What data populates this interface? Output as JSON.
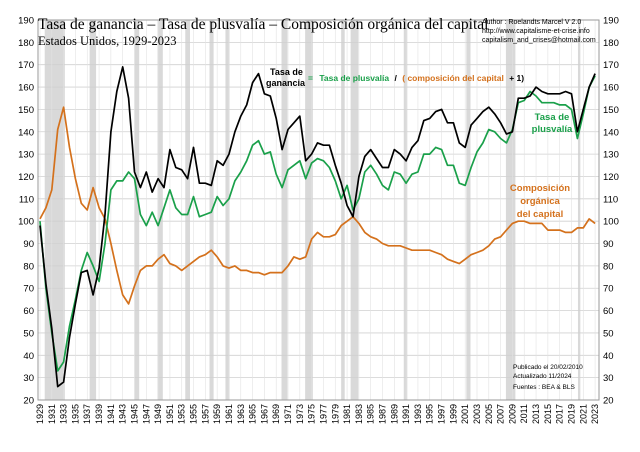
{
  "chart_data": {
    "type": "line",
    "title": "Tasa de ganancia – Tasa de plusvalía – Composición orgánica del capital",
    "subtitle": "Estados Unidos, 1929-2023",
    "credits": [
      "Author : Roelandts Marcel  V 2.0",
      "http://www.capitalisme-et-crise.info",
      "capitalism_and_crises@hotmail.com"
    ],
    "notes": [
      "Publicado el 20/02/2010",
      "Actualizado 11/2024",
      "Fuentes : BEA & BLS"
    ],
    "formula": {
      "lhs_line1": "Tasa de",
      "lhs_line2": "ganancia",
      "equals": "=",
      "term1": "Tasa de plusvalía",
      "slash": "/",
      "paren_open": "(",
      "term2": "composición del capital",
      "plus_one": "+ 1)"
    },
    "labels": {
      "plusvalia": [
        "Tasa de",
        "plusvalía"
      ],
      "composicion": [
        "Composición",
        "orgánica",
        "del capital"
      ]
    },
    "ylim": [
      20,
      190
    ],
    "yticks": [
      20,
      30,
      40,
      50,
      60,
      70,
      80,
      90,
      100,
      110,
      120,
      130,
      140,
      150,
      160,
      170,
      180,
      190
    ],
    "xlim": [
      1929,
      2023
    ],
    "xticks": [
      1929,
      1931,
      1933,
      1935,
      1937,
      1939,
      1941,
      1943,
      1945,
      1947,
      1949,
      1951,
      1953,
      1955,
      1957,
      1959,
      1961,
      1963,
      1965,
      1967,
      1969,
      1971,
      1973,
      1975,
      1977,
      1979,
      1981,
      1983,
      1985,
      1987,
      1989,
      1991,
      1993,
      1995,
      1997,
      1999,
      2001,
      2003,
      2005,
      2007,
      2009,
      2011,
      2013,
      2015,
      2017,
      2019,
      2021,
      2023
    ],
    "grid": true,
    "recessions": [
      [
        1929.8,
        1933.2
      ],
      [
        1937.4,
        1938.5
      ],
      [
        1945.0,
        1945.8
      ],
      [
        1948.9,
        1949.8
      ],
      [
        1953.6,
        1954.4
      ],
      [
        1957.7,
        1958.4
      ],
      [
        1960.4,
        1961.1
      ],
      [
        1969.9,
        1970.9
      ],
      [
        1973.9,
        1975.2
      ],
      [
        1980.0,
        1980.6
      ],
      [
        1981.6,
        1982.9
      ],
      [
        1990.6,
        1991.2
      ],
      [
        2001.2,
        2001.9
      ],
      [
        2007.9,
        2009.5
      ],
      [
        2020.1,
        2020.5
      ]
    ],
    "x": [
      1929,
      1930,
      1931,
      1932,
      1933,
      1934,
      1935,
      1936,
      1937,
      1938,
      1939,
      1940,
      1941,
      1942,
      1943,
      1944,
      1945,
      1946,
      1947,
      1948,
      1949,
      1950,
      1951,
      1952,
      1953,
      1954,
      1955,
      1956,
      1957,
      1958,
      1959,
      1960,
      1961,
      1962,
      1963,
      1964,
      1965,
      1966,
      1967,
      1968,
      1969,
      1970,
      1971,
      1972,
      1973,
      1974,
      1975,
      1976,
      1977,
      1978,
      1979,
      1980,
      1981,
      1982,
      1983,
      1984,
      1985,
      1986,
      1987,
      1988,
      1989,
      1990,
      1991,
      1992,
      1993,
      1994,
      1995,
      1996,
      1997,
      1998,
      1999,
      2000,
      2001,
      2002,
      2003,
      2004,
      2005,
      2006,
      2007,
      2008,
      2009,
      2010,
      2011,
      2012,
      2013,
      2014,
      2015,
      2016,
      2017,
      2018,
      2019,
      2020,
      2021,
      2022,
      2023
    ],
    "series": [
      {
        "name": "Tasa de ganancia",
        "color": "#000000",
        "values": [
          98,
          72,
          52,
          26,
          28,
          48,
          63,
          77,
          78,
          67,
          79,
          103,
          140,
          158,
          169,
          155,
          122,
          115,
          122,
          113,
          119,
          115,
          132,
          124,
          123,
          119,
          133,
          117,
          117,
          116,
          127,
          125,
          130,
          140,
          147,
          152,
          162,
          166,
          157,
          156,
          146,
          132,
          141,
          144,
          147,
          127,
          130,
          135,
          134,
          134,
          125,
          117,
          107,
          102,
          120,
          129,
          132,
          128,
          124,
          124,
          132,
          130,
          127,
          133,
          136,
          145,
          146,
          149,
          150,
          144,
          144,
          135,
          133,
          143,
          146,
          149,
          151,
          148,
          144,
          139,
          140,
          155,
          155,
          156,
          160,
          158,
          157,
          157,
          157,
          158,
          157,
          140,
          150,
          160,
          166
        ]
      },
      {
        "name": "Tasa de plusvalía",
        "color": "#1aa04a",
        "values": [
          100,
          70,
          50,
          33,
          37,
          53,
          65,
          78,
          86,
          80,
          73,
          90,
          114,
          118,
          118,
          122,
          119,
          103,
          98,
          104,
          98,
          106,
          114,
          106,
          103,
          103,
          111,
          102,
          103,
          104,
          111,
          107,
          110,
          118,
          122,
          127,
          134,
          136,
          130,
          131,
          121,
          115,
          123,
          125,
          127,
          119,
          126,
          128,
          127,
          124,
          118,
          110,
          116,
          105,
          110,
          122,
          125,
          121,
          116,
          114,
          122,
          121,
          117,
          121,
          122,
          130,
          130,
          133,
          132,
          125,
          125,
          117,
          116,
          124,
          131,
          135,
          141,
          140,
          137,
          135,
          141,
          153,
          154,
          158,
          156,
          153,
          153,
          153,
          152,
          152,
          150,
          137,
          148,
          160,
          165
        ]
      },
      {
        "name": "Composición orgánica del capital",
        "color": "#d4711c",
        "values": [
          101,
          106,
          114,
          141,
          151,
          133,
          119,
          108,
          105,
          115,
          106,
          101,
          90,
          78,
          67,
          63,
          71,
          78,
          80,
          80,
          83,
          85,
          81,
          80,
          78,
          80,
          82,
          84,
          85,
          87,
          84,
          80,
          79,
          80,
          78,
          78,
          77,
          77,
          76,
          77,
          77,
          77,
          80,
          84,
          83,
          84,
          92,
          95,
          93,
          93,
          94,
          98,
          100,
          102,
          99,
          95,
          93,
          92,
          90,
          89,
          89,
          89,
          88,
          87,
          87,
          87,
          87,
          86,
          85,
          83,
          82,
          81,
          83,
          85,
          86,
          87,
          89,
          92,
          93,
          96,
          99,
          100,
          100,
          99,
          99,
          99,
          96,
          96,
          96,
          95,
          95,
          97,
          97,
          101,
          99
        ]
      }
    ]
  }
}
